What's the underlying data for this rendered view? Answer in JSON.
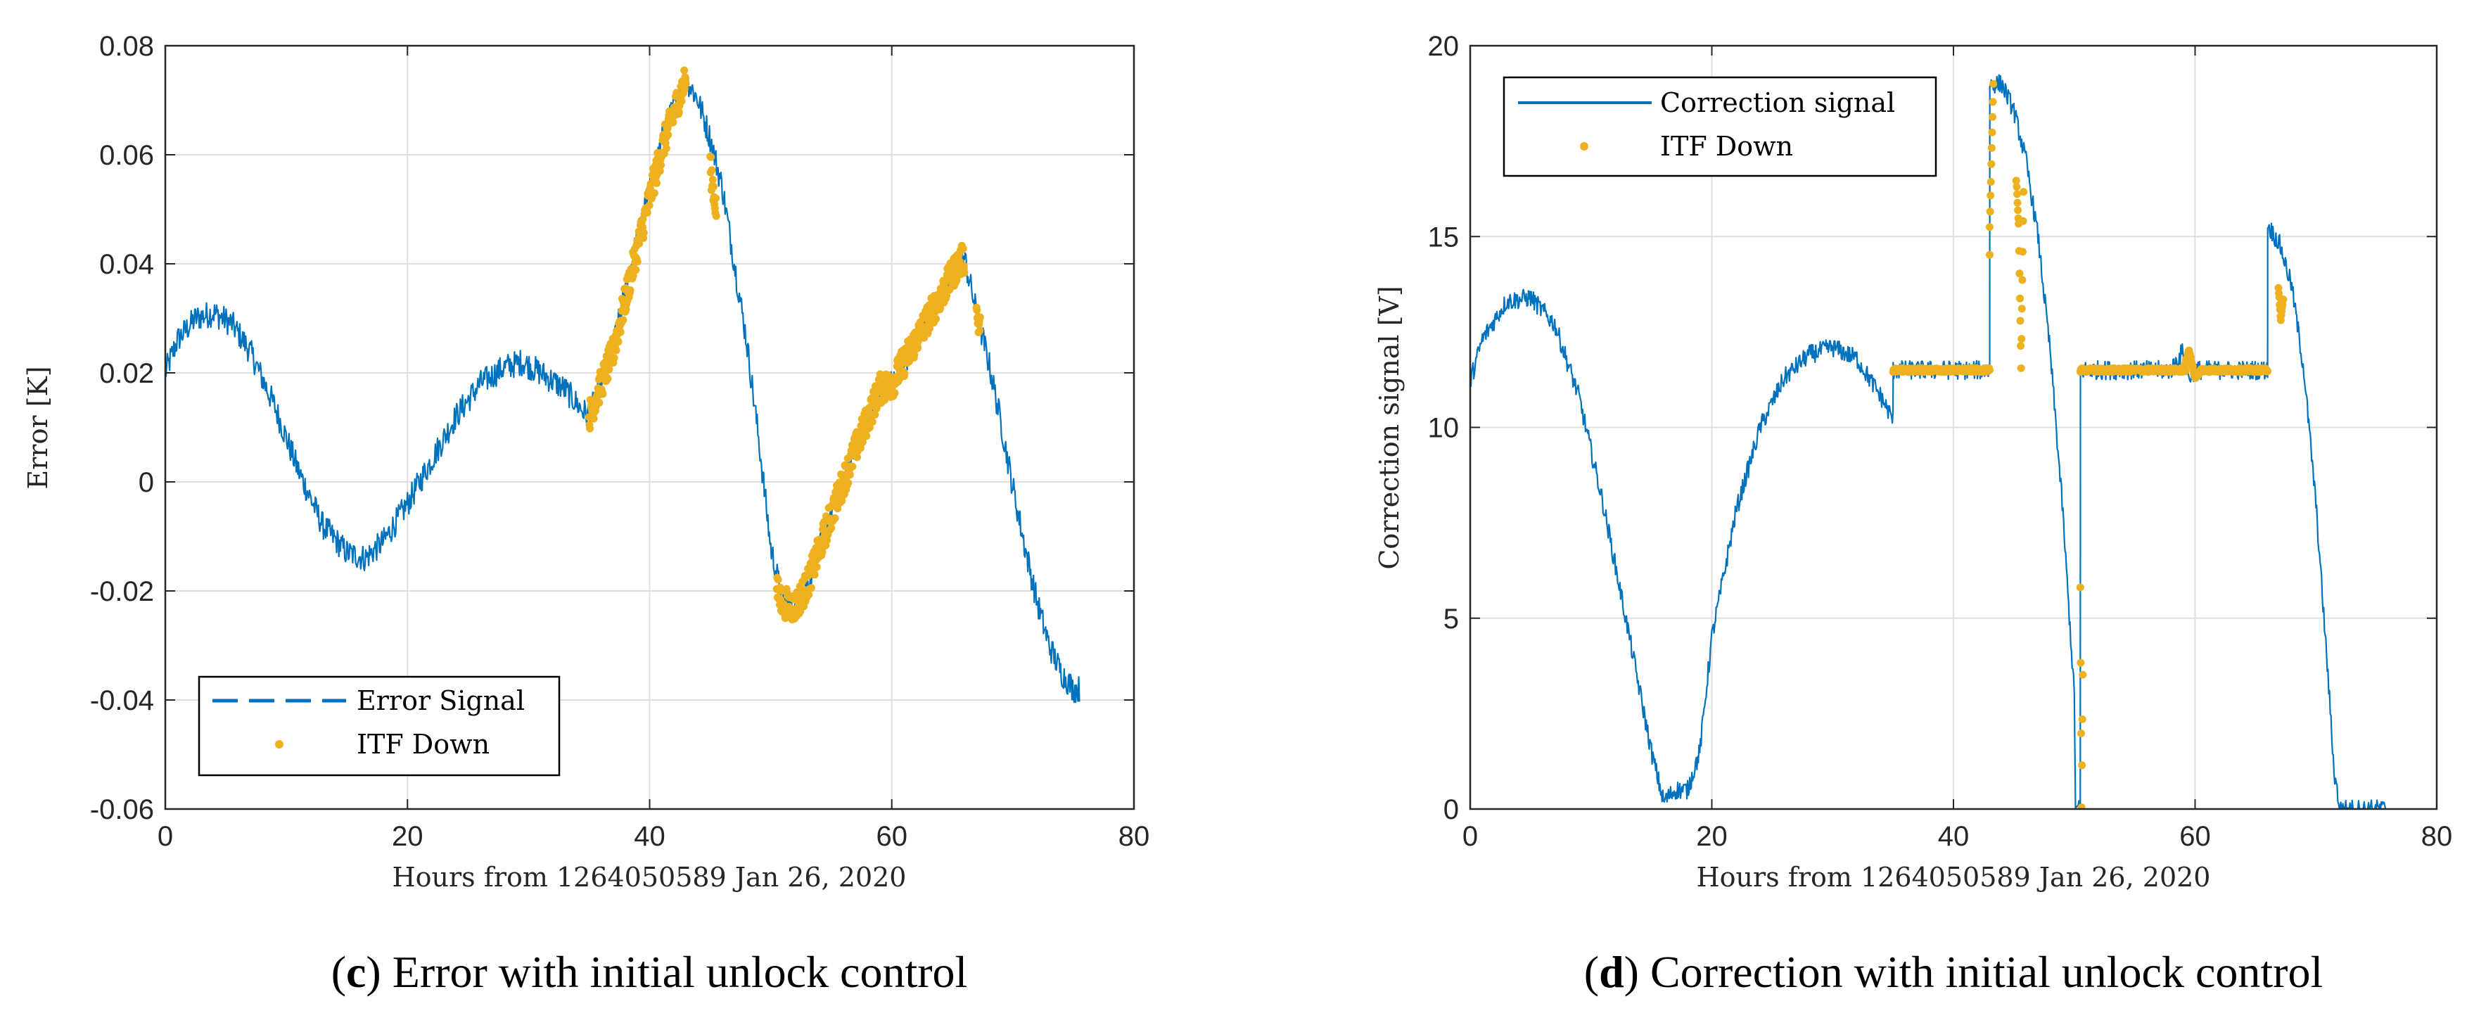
{
  "colors": {
    "series_blue": "#0072BD",
    "series_yellow": "#EDB120",
    "grid": "#DFDFDF",
    "axis": "#262626"
  },
  "chart_data": [
    {
      "id": "c",
      "type": "line",
      "xlabel": "Hours from 1264050589 Jan 26, 2020",
      "ylabel": "Error [K]",
      "xlim": [
        0,
        80
      ],
      "ylim": [
        -0.06,
        0.08
      ],
      "xticks": [
        0,
        20,
        40,
        60,
        80
      ],
      "xtick_labels": [
        "0",
        "20",
        "40",
        "60",
        "80"
      ],
      "yticks": [
        -0.06,
        -0.04,
        -0.02,
        0,
        0.02,
        0.04,
        0.06,
        0.08
      ],
      "ytick_labels": [
        "-0.06",
        "-0.04",
        "-0.02",
        "0",
        "0.02",
        "0.04",
        "0.06",
        "0.08"
      ],
      "grid": true,
      "legend_position": "bottom-left",
      "caption_letter": "c",
      "caption_text": ") Error with initial unlock control",
      "series": [
        {
          "name": "Error Signal",
          "style": "dashed-line",
          "color": "#0072BD",
          "noise": 0.0025,
          "x": [
            0,
            1,
            2.5,
            4,
            5.5,
            7,
            9,
            11,
            13,
            15,
            16.5,
            18,
            20,
            22,
            24,
            26,
            28,
            29.5,
            31,
            33,
            34.5,
            35,
            37,
            39,
            41,
            42.5,
            43,
            44,
            45,
            46,
            47,
            48,
            49,
            50,
            51,
            52,
            53,
            55,
            57,
            59,
            60,
            62,
            64,
            65.5,
            66,
            67,
            68,
            69,
            70,
            71,
            72,
            73,
            74,
            75,
            75.5
          ],
          "y": [
            0.02,
            0.026,
            0.03,
            0.031,
            0.029,
            0.024,
            0.014,
            0.002,
            -0.008,
            -0.013,
            -0.014,
            -0.011,
            -0.004,
            0.004,
            0.012,
            0.018,
            0.021,
            0.022,
            0.02,
            0.017,
            0.013,
            0.012,
            0.025,
            0.045,
            0.063,
            0.072,
            0.074,
            0.07,
            0.063,
            0.054,
            0.04,
            0.026,
            0.008,
            -0.012,
            -0.022,
            -0.023,
            -0.019,
            -0.006,
            0.006,
            0.017,
            0.018,
            0.026,
            0.034,
            0.04,
            0.041,
            0.031,
            0.022,
            0.011,
            -0.001,
            -0.012,
            -0.022,
            -0.03,
            -0.035,
            -0.038,
            -0.038
          ]
        },
        {
          "name": "ITF Down",
          "style": "dots",
          "color": "#EDB120",
          "noise": 0.0028,
          "segments": [
            {
              "x": [
                35,
                37,
                39,
                41,
                42.5,
                43
              ],
              "y": [
                0.012,
                0.024,
                0.043,
                0.061,
                0.071,
                0.074
              ]
            },
            {
              "x": [
                45,
                45.5
              ],
              "y": [
                0.058,
                0.05
              ]
            },
            {
              "x": [
                50.5,
                51,
                52,
                53,
                55,
                57,
                59,
                60,
                62,
                64,
                65.5,
                66
              ],
              "y": [
                -0.02,
                -0.022,
                -0.023,
                -0.019,
                -0.006,
                0.006,
                0.017,
                0.018,
                0.026,
                0.034,
                0.04,
                0.041
              ]
            },
            {
              "x": [
                67,
                67.3
              ],
              "y": [
                0.031,
                0.028
              ]
            }
          ]
        }
      ]
    },
    {
      "id": "d",
      "type": "line",
      "xlabel": "Hours from 1264050589 Jan 26, 2020",
      "ylabel": "Correction signal [V]",
      "xlim": [
        0,
        80
      ],
      "ylim": [
        0,
        20
      ],
      "xticks": [
        0,
        20,
        40,
        60,
        80
      ],
      "xtick_labels": [
        "0",
        "20",
        "40",
        "60",
        "80"
      ],
      "yticks": [
        0,
        5,
        10,
        15,
        20
      ],
      "ytick_labels": [
        "0",
        "5",
        "10",
        "15",
        "20"
      ],
      "grid": true,
      "legend_position": "top-left",
      "caption_letter": "d",
      "caption_text": ") Correction with initial unlock control",
      "series": [
        {
          "name": "Correction signal",
          "style": "solid-line",
          "color": "#0072BD",
          "noise": 0.25,
          "x": [
            0,
            1,
            3,
            5,
            7,
            9,
            11,
            13,
            15,
            16,
            17,
            18,
            19,
            20,
            22,
            24,
            26,
            28,
            30,
            32,
            34,
            35,
            35.01,
            43,
            43.01,
            44,
            45,
            46,
            47,
            48,
            49,
            50,
            50.1,
            50.5,
            50.51,
            52,
            54,
            56,
            58,
            59,
            59.5,
            60,
            62,
            64,
            66,
            66.01,
            67,
            68,
            69,
            70,
            71,
            71.5,
            72,
            73,
            74,
            75,
            76
          ],
          "y": [
            11.2,
            12.3,
            13.3,
            13.4,
            12.7,
            10.8,
            8,
            4.8,
            1.5,
            0.2,
            0.5,
            0.5,
            1.5,
            4.5,
            7.8,
            10,
            11.3,
            11.9,
            12.1,
            11.8,
            10.8,
            10.2,
            11.5,
            11.5,
            19,
            19,
            18.3,
            17,
            15,
            12,
            8,
            3,
            0,
            0,
            11.5,
            11.5,
            11.5,
            11.5,
            11.5,
            12,
            11.3,
            11.5,
            11.5,
            11.5,
            11.5,
            15.3,
            14.8,
            13.7,
            11.5,
            8,
            3.5,
            1,
            0,
            0,
            0,
            0,
            0
          ]
        },
        {
          "name": "ITF Down",
          "style": "dots",
          "color": "#EDB120",
          "noise": 0.05,
          "segments": [
            {
              "x": [
                35,
                43
              ],
              "y": [
                11.5,
                11.5
              ]
            },
            {
              "x": [
                43,
                43,
                43.3
              ],
              "y": [
                14.5,
                15.2,
                19
              ]
            },
            {
              "x": [
                45.2,
                45.4,
                45.6,
                45.8
              ],
              "y": [
                16.5,
                15.3,
                11.5,
                16.2
              ]
            },
            {
              "x": [
                50.5,
                59.2
              ],
              "y": [
                11.5,
                11.5
              ]
            },
            {
              "x": [
                50.5,
                50.6,
                50.7
              ],
              "y": [
                5.8,
                0,
                3.5
              ]
            },
            {
              "x": [
                59,
                59.5,
                60,
                60.5
              ],
              "y": [
                11.5,
                12,
                11.3,
                11.5
              ]
            },
            {
              "x": [
                60.5,
                66
              ],
              "y": [
                11.5,
                11.5
              ]
            },
            {
              "x": [
                66.9,
                67.1,
                67.3
              ],
              "y": [
                13.7,
                12.8,
                13.4
              ]
            }
          ]
        }
      ]
    }
  ]
}
